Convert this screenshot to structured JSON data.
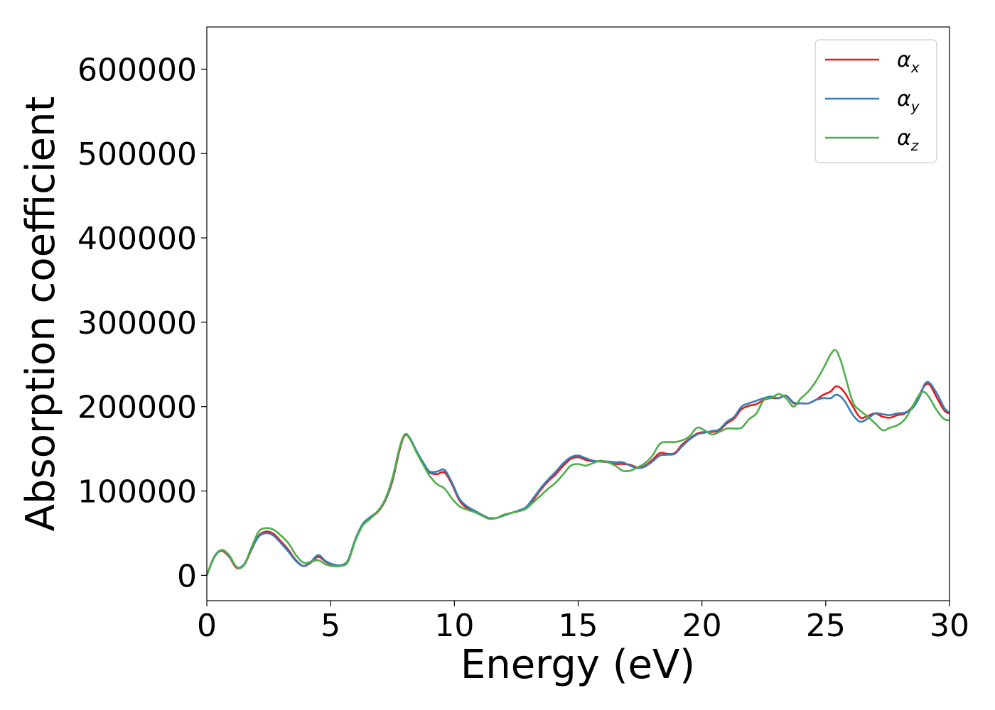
{
  "chart_data": {
    "type": "line",
    "title": "",
    "xlabel": "Energy (eV)",
    "ylabel": "Absorption coefficient",
    "xlim": [
      0,
      30
    ],
    "ylim": [
      -30000,
      650000
    ],
    "xticks": [
      0,
      5,
      10,
      15,
      20,
      25,
      30
    ],
    "yticks": [
      0,
      100000,
      200000,
      300000,
      400000,
      500000,
      600000
    ],
    "grid": false,
    "legend_position": "top-right",
    "series": [
      {
        "name": "α",
        "subscript": "x",
        "color": "#e41a1c",
        "x": [
          0,
          0.3,
          0.6,
          0.9,
          1.2,
          1.5,
          1.8,
          2.1,
          2.4,
          2.7,
          3.0,
          3.3,
          3.6,
          3.9,
          4.2,
          4.5,
          4.8,
          5.1,
          5.4,
          5.7,
          6.0,
          6.3,
          6.6,
          6.9,
          7.2,
          7.5,
          7.8,
          8.0,
          8.2,
          8.5,
          8.8,
          9.0,
          9.3,
          9.6,
          9.9,
          10.2,
          10.5,
          10.8,
          11.1,
          11.4,
          11.7,
          12.0,
          12.3,
          12.6,
          12.9,
          13.2,
          13.5,
          13.8,
          14.1,
          14.4,
          14.7,
          15.0,
          15.3,
          15.6,
          15.9,
          16.2,
          16.5,
          16.8,
          17.1,
          17.4,
          17.7,
          18.0,
          18.3,
          18.6,
          18.9,
          19.2,
          19.5,
          19.8,
          20.1,
          20.4,
          20.7,
          21.0,
          21.3,
          21.6,
          21.9,
          22.2,
          22.5,
          22.8,
          23.1,
          23.4,
          23.7,
          24.0,
          24.3,
          24.6,
          24.9,
          25.2,
          25.4,
          25.6,
          25.8,
          26.1,
          26.4,
          26.7,
          27.0,
          27.3,
          27.6,
          27.9,
          28.2,
          28.5,
          28.8,
          29.0,
          29.2,
          29.5,
          29.8,
          30.0
        ],
        "y": [
          0,
          22000,
          29000,
          22000,
          9000,
          12000,
          30000,
          47000,
          52000,
          49000,
          40000,
          30000,
          18000,
          11000,
          15000,
          22000,
          16000,
          12000,
          11000,
          17000,
          42000,
          60000,
          68000,
          75000,
          88000,
          112000,
          150000,
          166000,
          162000,
          145000,
          130000,
          122000,
          120000,
          122000,
          108000,
          89000,
          80000,
          76000,
          71000,
          68000,
          68000,
          71000,
          74000,
          76000,
          80000,
          90000,
          102000,
          112000,
          120000,
          130000,
          138000,
          140000,
          137000,
          135000,
          135000,
          134000,
          132000,
          132000,
          131000,
          128000,
          130000,
          137000,
          145000,
          144000,
          145000,
          155000,
          162000,
          168000,
          170000,
          170000,
          172000,
          180000,
          186000,
          197000,
          201000,
          203000,
          208000,
          210000,
          210000,
          213000,
          204000,
          204000,
          204000,
          208000,
          214000,
          218000,
          224000,
          222000,
          215000,
          200000,
          187000,
          189000,
          192000,
          188000,
          187000,
          190000,
          192000,
          200000,
          215000,
          225000,
          226000,
          210000,
          195000,
          192000
        ]
      },
      {
        "name": "α",
        "subscript": "y",
        "color": "#377eb8",
        "x": [
          0,
          0.3,
          0.6,
          0.9,
          1.2,
          1.5,
          1.8,
          2.1,
          2.4,
          2.7,
          3.0,
          3.3,
          3.6,
          3.9,
          4.2,
          4.5,
          4.8,
          5.1,
          5.4,
          5.7,
          6.0,
          6.3,
          6.6,
          6.9,
          7.2,
          7.5,
          7.8,
          8.0,
          8.2,
          8.5,
          8.8,
          9.0,
          9.3,
          9.6,
          9.9,
          10.2,
          10.5,
          10.8,
          11.1,
          11.4,
          11.7,
          12.0,
          12.3,
          12.6,
          12.9,
          13.2,
          13.5,
          13.8,
          14.1,
          14.4,
          14.7,
          15.0,
          15.3,
          15.6,
          15.9,
          16.2,
          16.5,
          16.8,
          17.1,
          17.4,
          17.7,
          18.0,
          18.3,
          18.6,
          18.9,
          19.2,
          19.5,
          19.8,
          20.1,
          20.4,
          20.7,
          21.0,
          21.3,
          21.6,
          21.9,
          22.2,
          22.5,
          22.8,
          23.1,
          23.4,
          23.7,
          24.0,
          24.3,
          24.6,
          24.9,
          25.2,
          25.4,
          25.6,
          25.8,
          26.1,
          26.4,
          26.7,
          27.0,
          27.3,
          27.6,
          27.9,
          28.2,
          28.5,
          28.8,
          29.0,
          29.2,
          29.5,
          29.8,
          30.0
        ],
        "y": [
          0,
          22000,
          30000,
          23000,
          10000,
          13000,
          31000,
          46000,
          50000,
          47000,
          38000,
          28000,
          17000,
          11000,
          16000,
          24000,
          17000,
          13000,
          12000,
          18000,
          43000,
          61000,
          69000,
          76000,
          89000,
          114000,
          152000,
          167000,
          163000,
          146000,
          131000,
          123000,
          123000,
          125000,
          110000,
          91000,
          82000,
          77000,
          72000,
          68000,
          68000,
          71000,
          74000,
          77000,
          81000,
          92000,
          104000,
          114000,
          123000,
          133000,
          140000,
          142000,
          139000,
          136000,
          135000,
          135000,
          134000,
          134000,
          130000,
          127000,
          129000,
          135000,
          142000,
          143000,
          144000,
          153000,
          161000,
          167000,
          169000,
          171000,
          173000,
          182000,
          188000,
          200000,
          204000,
          207000,
          210000,
          212000,
          210000,
          213000,
          205000,
          204000,
          204000,
          208000,
          210000,
          210000,
          214000,
          212000,
          205000,
          190000,
          182000,
          186000,
          192000,
          191000,
          190000,
          192000,
          193000,
          198000,
          212000,
          227000,
          228000,
          215000,
          198000,
          193000
        ]
      },
      {
        "name": "α",
        "subscript": "z",
        "color": "#4daf4a",
        "x": [
          0,
          0.3,
          0.6,
          0.9,
          1.2,
          1.5,
          1.8,
          2.1,
          2.4,
          2.7,
          3.0,
          3.3,
          3.6,
          3.9,
          4.2,
          4.5,
          4.8,
          5.1,
          5.4,
          5.7,
          6.0,
          6.3,
          6.6,
          6.9,
          7.2,
          7.5,
          7.8,
          8.0,
          8.2,
          8.5,
          8.8,
          9.0,
          9.3,
          9.6,
          9.9,
          10.2,
          10.5,
          10.8,
          11.1,
          11.4,
          11.7,
          12.0,
          12.3,
          12.6,
          12.9,
          13.2,
          13.5,
          13.8,
          14.1,
          14.4,
          14.7,
          15.0,
          15.3,
          15.6,
          15.9,
          16.2,
          16.5,
          16.8,
          17.1,
          17.4,
          17.7,
          18.0,
          18.3,
          18.6,
          18.9,
          19.2,
          19.5,
          19.8,
          20.1,
          20.4,
          20.7,
          21.0,
          21.3,
          21.6,
          21.9,
          22.2,
          22.5,
          22.8,
          23.1,
          23.4,
          23.7,
          24.0,
          24.3,
          24.6,
          24.9,
          25.2,
          25.4,
          25.6,
          25.8,
          26.1,
          26.4,
          26.7,
          27.0,
          27.3,
          27.6,
          27.9,
          28.2,
          28.5,
          28.8,
          29.0,
          29.2,
          29.5,
          29.8,
          30.0
        ],
        "y": [
          0,
          21000,
          30000,
          24000,
          10000,
          12000,
          33000,
          52000,
          56000,
          54000,
          47000,
          38000,
          24000,
          15000,
          16000,
          18000,
          13000,
          11000,
          11000,
          16000,
          41000,
          59000,
          67000,
          76000,
          90000,
          116000,
          153000,
          167000,
          162000,
          144000,
          128000,
          118000,
          108000,
          103000,
          91000,
          82000,
          78000,
          75000,
          71000,
          67000,
          68000,
          72000,
          74000,
          76000,
          79000,
          87000,
          95000,
          103000,
          110000,
          120000,
          130000,
          132000,
          130000,
          133000,
          136000,
          134000,
          130000,
          124000,
          124000,
          128000,
          133000,
          142000,
          156000,
          158000,
          158000,
          160000,
          165000,
          175000,
          172000,
          167000,
          170000,
          174000,
          174000,
          175000,
          185000,
          192000,
          208000,
          210000,
          215000,
          210000,
          200000,
          210000,
          218000,
          230000,
          245000,
          262000,
          267000,
          255000,
          235000,
          205000,
          195000,
          188000,
          180000,
          172000,
          175000,
          178000,
          185000,
          200000,
          215000,
          217000,
          210000,
          195000,
          185000,
          184000
        ]
      }
    ]
  }
}
